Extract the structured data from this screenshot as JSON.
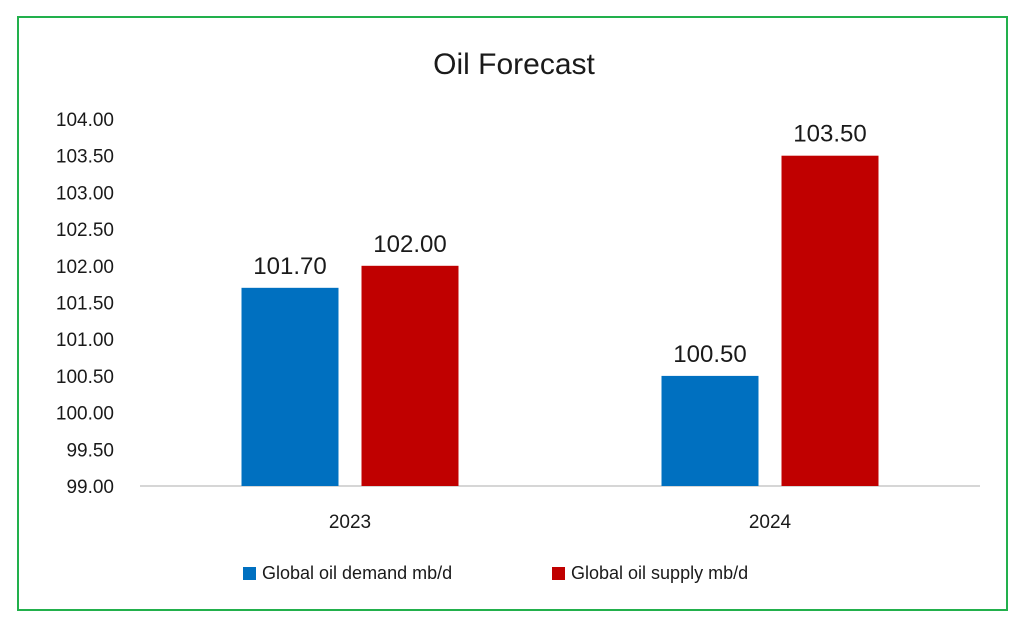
{
  "chart_data": {
    "type": "bar",
    "title": "Oil Forecast",
    "categories": [
      "2023",
      "2024"
    ],
    "series": [
      {
        "name": "Global oil demand mb/d",
        "values": [
          101.7,
          100.5
        ],
        "labels": [
          "101.70",
          "100.50"
        ],
        "color": "#0070c0"
      },
      {
        "name": "Global oil supply mb/d",
        "values": [
          102.0,
          103.5
        ],
        "labels": [
          "102.00",
          "103.50"
        ],
        "color": "#c00000"
      }
    ],
    "ylim": [
      99,
      104
    ],
    "yticks": [
      "99.00",
      "99.50",
      "100.00",
      "100.50",
      "101.00",
      "101.50",
      "102.00",
      "102.50",
      "103.00",
      "103.50",
      "104.00"
    ],
    "xlabel": "",
    "ylabel": "",
    "grid": false,
    "legend": "bottom"
  }
}
